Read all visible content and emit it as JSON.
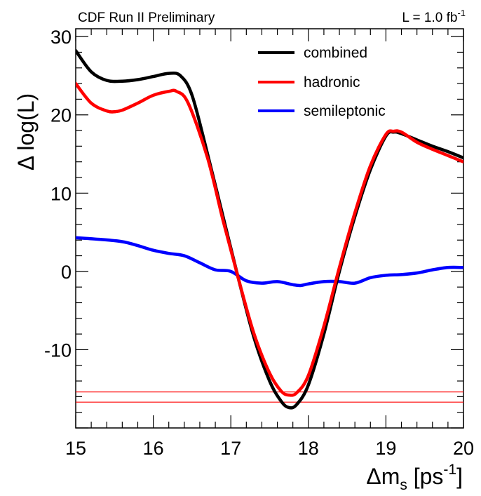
{
  "header": {
    "left": "CDF Run II Preliminary",
    "right_base": "L = 1.0 fb",
    "right_sup": "-1"
  },
  "chart_data": {
    "type": "line",
    "xlabel": {
      "base": "Δm",
      "sub": "s",
      "mid": " [ps",
      "sup": "-1",
      "end": "]"
    },
    "ylabel": "Δ log(L)",
    "xlim": [
      15,
      20
    ],
    "ylim": [
      -20,
      31
    ],
    "xticks": [
      15,
      16,
      17,
      18,
      19,
      20
    ],
    "yticks": [
      30,
      20,
      10,
      0,
      -10
    ],
    "xtick_labels": [
      "15",
      "16",
      "17",
      "18",
      "19",
      "20"
    ],
    "ytick_labels": [
      "30",
      "20",
      "10",
      "0",
      "-10"
    ],
    "grid": false,
    "legend_position": "top-right",
    "series": [
      {
        "name": "combined",
        "color": "#000000",
        "x": [
          15.0,
          15.2,
          15.4,
          15.6,
          15.8,
          16.0,
          16.2,
          16.35,
          16.5,
          16.7,
          16.9,
          17.1,
          17.3,
          17.5,
          17.65,
          17.75,
          17.85,
          18.0,
          18.2,
          18.4,
          18.6,
          18.8,
          19.0,
          19.1,
          19.2,
          19.4,
          19.6,
          19.8,
          20.0
        ],
        "y": [
          28.2,
          25.5,
          24.4,
          24.3,
          24.5,
          24.9,
          25.3,
          25.0,
          22.5,
          15.0,
          7.0,
          -1.0,
          -8.5,
          -14.0,
          -16.6,
          -17.4,
          -17.0,
          -14.5,
          -8.0,
          0.0,
          7.0,
          13.0,
          17.3,
          17.8,
          17.6,
          16.8,
          16.0,
          15.3,
          14.5
        ]
      },
      {
        "name": "hadronic",
        "color": "#ff0000",
        "x": [
          15.0,
          15.2,
          15.4,
          15.5,
          15.6,
          15.8,
          16.0,
          16.2,
          16.3,
          16.45,
          16.7,
          16.9,
          17.1,
          17.3,
          17.5,
          17.65,
          17.75,
          17.85,
          18.0,
          18.2,
          18.4,
          18.6,
          18.8,
          19.0,
          19.1,
          19.2,
          19.4,
          19.6,
          19.8,
          20.0
        ],
        "y": [
          24.0,
          21.5,
          20.5,
          20.4,
          20.6,
          21.5,
          22.5,
          23.0,
          23.0,
          21.5,
          14.5,
          6.5,
          -1.0,
          -8.0,
          -13.0,
          -15.3,
          -15.8,
          -15.5,
          -13.3,
          -7.0,
          0.5,
          7.5,
          13.5,
          17.5,
          17.9,
          17.8,
          16.5,
          15.6,
          14.8,
          14.0
        ]
      },
      {
        "name": "semileptonic",
        "color": "#0000ff",
        "x": [
          15.0,
          15.3,
          15.6,
          15.8,
          16.0,
          16.2,
          16.4,
          16.6,
          16.8,
          17.0,
          17.2,
          17.4,
          17.6,
          17.8,
          17.9,
          18.0,
          18.2,
          18.4,
          18.6,
          18.8,
          19.0,
          19.2,
          19.4,
          19.6,
          19.8,
          20.0
        ],
        "y": [
          4.3,
          4.1,
          3.8,
          3.3,
          2.7,
          2.3,
          2.0,
          1.1,
          0.2,
          0.0,
          -1.2,
          -1.5,
          -1.3,
          -1.7,
          -1.8,
          -1.6,
          -1.3,
          -1.3,
          -1.5,
          -0.8,
          -0.5,
          -0.4,
          -0.2,
          0.2,
          0.5,
          0.5
        ]
      }
    ],
    "reference_lines": [
      {
        "y": -15.4,
        "color": "#ff0000"
      },
      {
        "y": -16.7,
        "color": "#ff0000"
      }
    ]
  }
}
